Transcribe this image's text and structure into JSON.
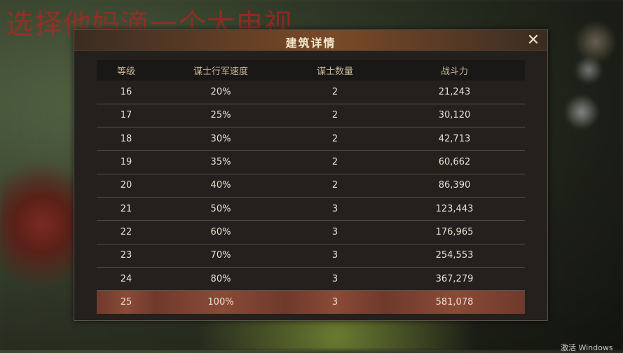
{
  "watermark": "选择他妈滴一个大电视",
  "os_notice": "激活 Windows",
  "dialog": {
    "title": "建筑详情",
    "close_icon": "crossed-swords-close-icon"
  },
  "table": {
    "headers": [
      "等级",
      "谋士行军速度",
      "谋士数量",
      "战斗力"
    ],
    "rows": [
      [
        "16",
        "20%",
        "2",
        "21,243"
      ],
      [
        "17",
        "25%",
        "2",
        "30,120"
      ],
      [
        "18",
        "30%",
        "2",
        "42,713"
      ],
      [
        "19",
        "35%",
        "2",
        "60,662"
      ],
      [
        "20",
        "40%",
        "2",
        "86,390"
      ],
      [
        "21",
        "50%",
        "3",
        "123,443"
      ],
      [
        "22",
        "60%",
        "3",
        "176,965"
      ],
      [
        "23",
        "70%",
        "3",
        "254,553"
      ],
      [
        "24",
        "80%",
        "3",
        "367,279"
      ],
      [
        "25",
        "100%",
        "3",
        "581,078"
      ]
    ],
    "highlighted_level": "25"
  },
  "colors": {
    "highlight": "#8a4a36",
    "header_bar": "#7a4a28",
    "watermark": "#c81e1e"
  }
}
